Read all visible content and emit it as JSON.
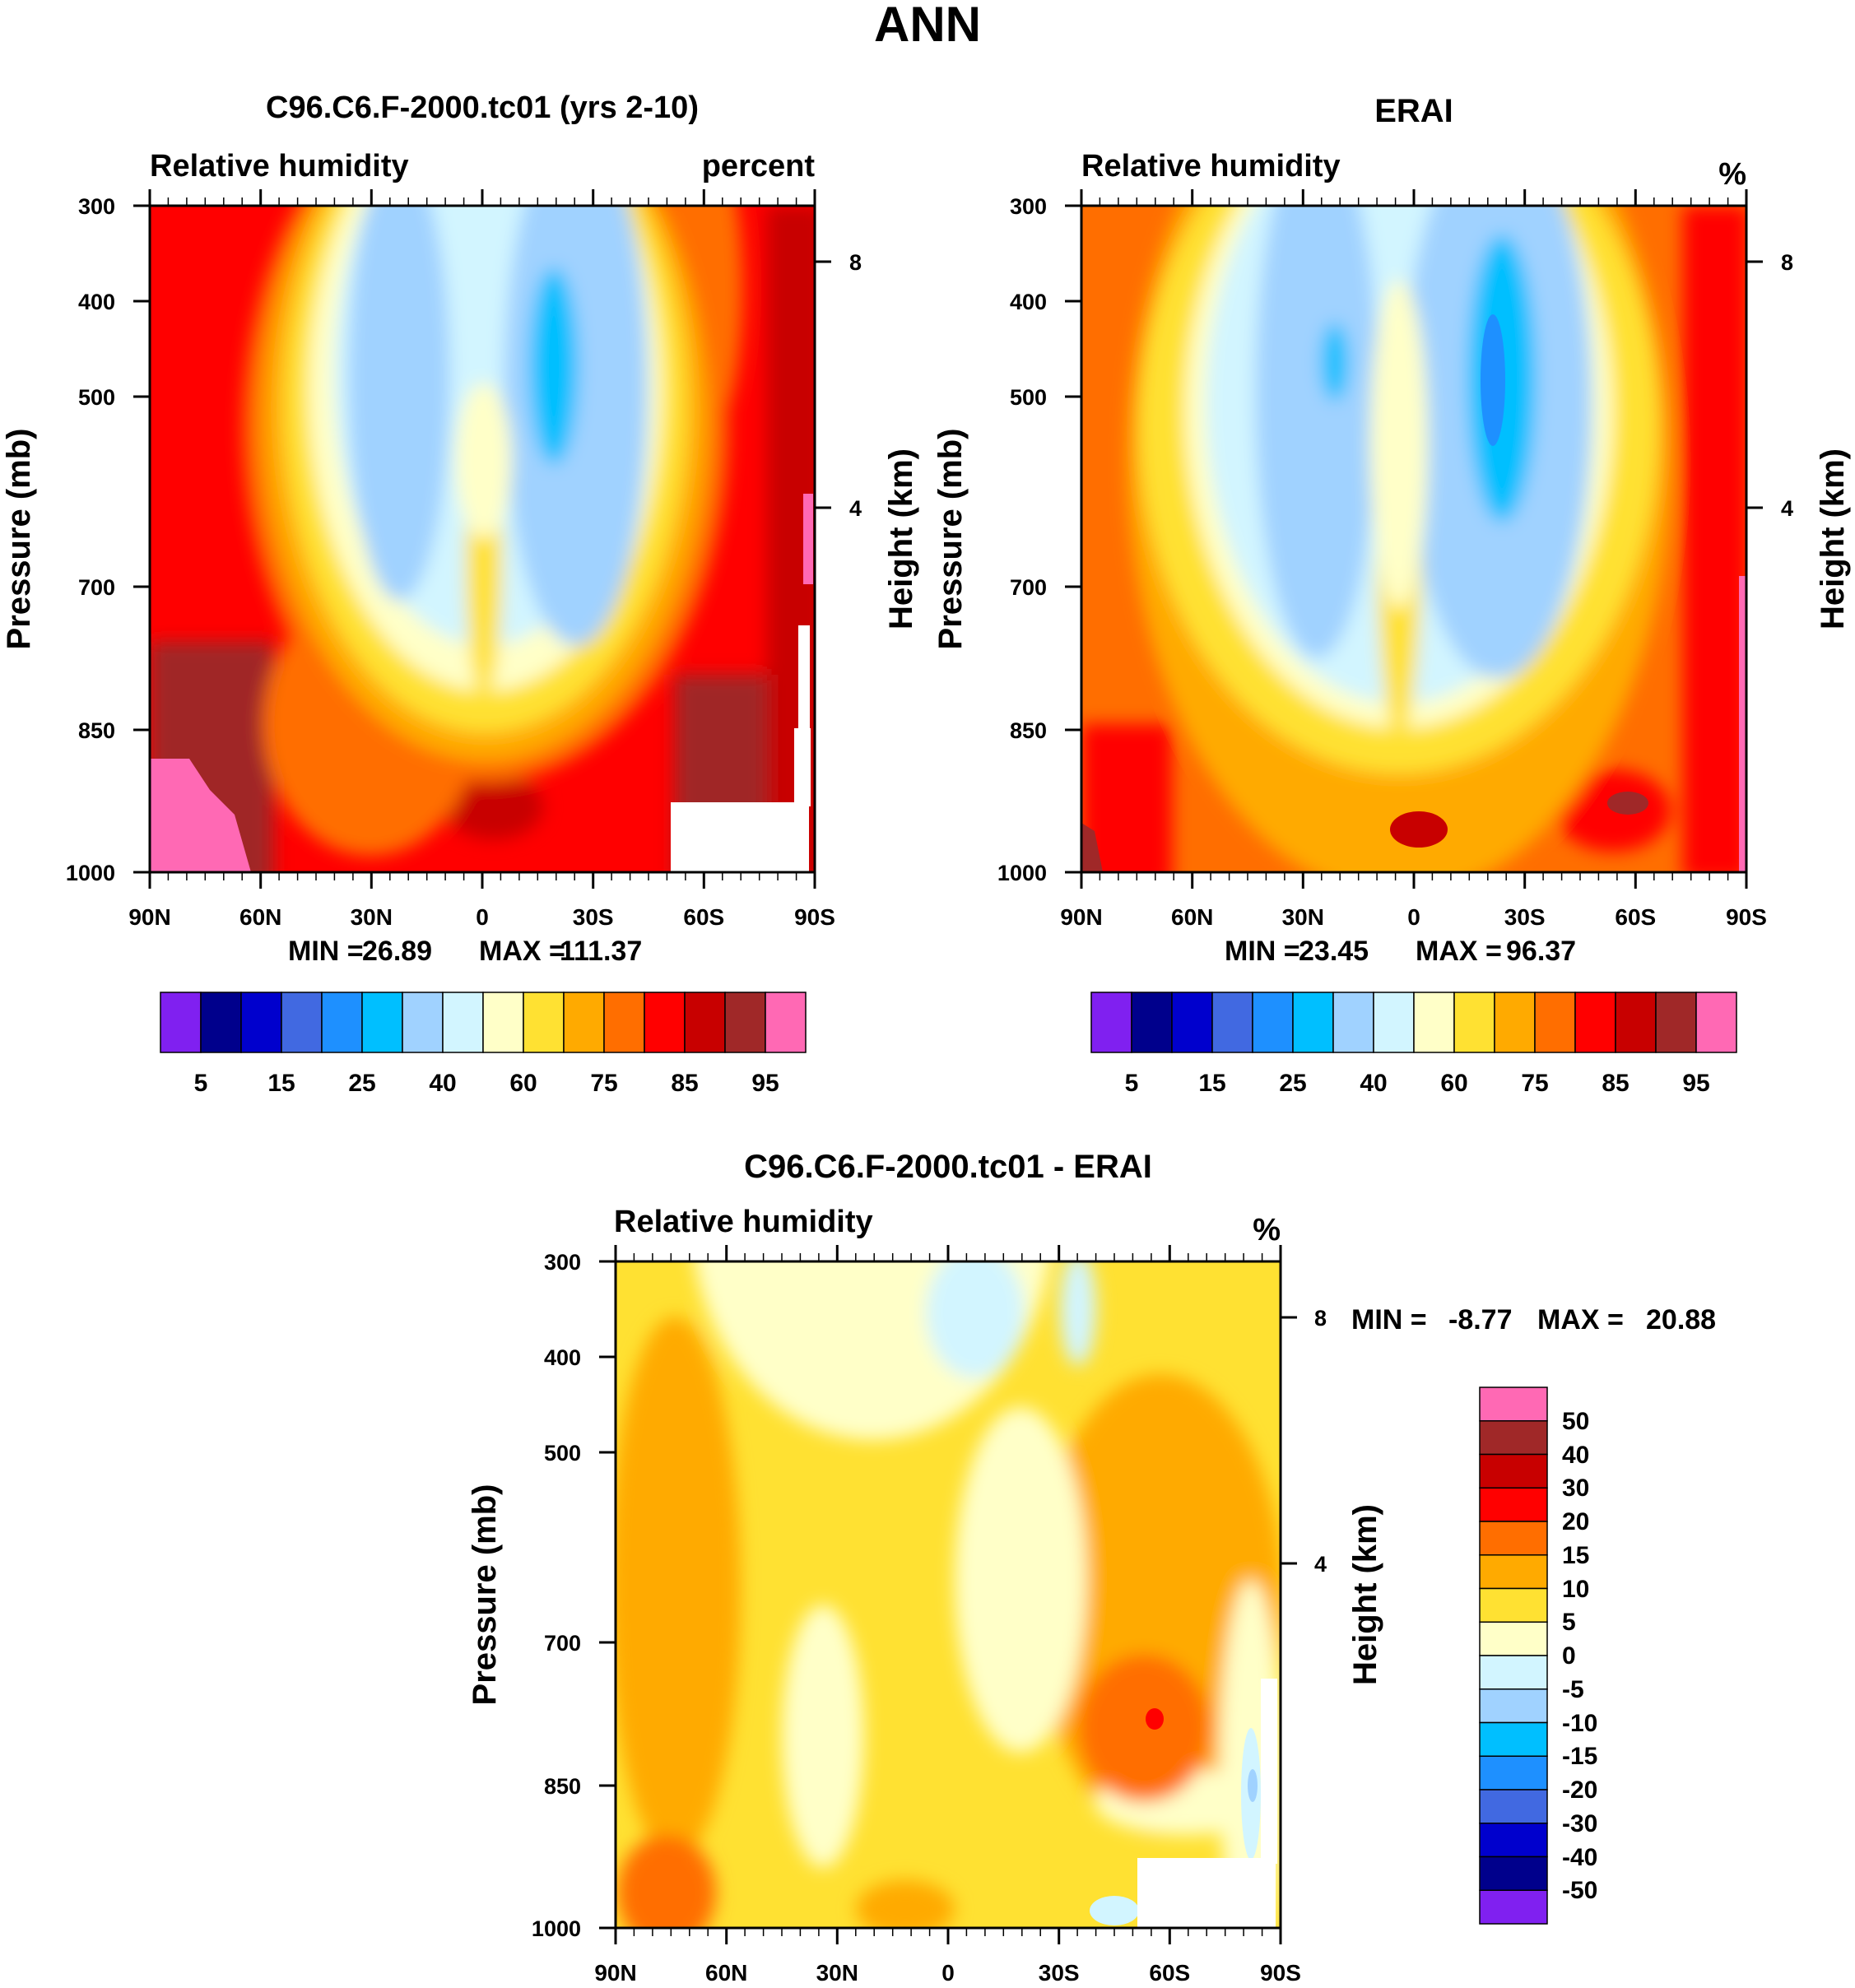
{
  "figure": {
    "title": "ANN"
  },
  "chart_data": [
    {
      "type": "heatmap",
      "panel": "model",
      "title": "C96.C6.F-2000.tc01 (yrs 2-10)",
      "variable": "Relative humidity",
      "units": "percent",
      "ylabel": "Pressure (mb)",
      "y2label": "Height (km)",
      "xticks": [
        "90N",
        "60N",
        "30N",
        "0",
        "30S",
        "60S",
        "90S"
      ],
      "yticks": [
        "300",
        "400",
        "500",
        "700",
        "850",
        "1000"
      ],
      "height_ticks": [
        "8",
        "4"
      ],
      "min_label": "MIN =",
      "min_value": "26.89",
      "max_label": "MAX =",
      "max_value": "111.37",
      "colorbar_labels": [
        "5",
        "15",
        "25",
        "40",
        "60",
        "75",
        "85",
        "95"
      ],
      "colors": [
        "#8020f0",
        "#00008c",
        "#0000cd",
        "#4169e1",
        "#1e90ff",
        "#00bfff",
        "#a0d2ff",
        "#d2f5ff",
        "#ffffc8",
        "#ffe132",
        "#ffaa00",
        "#ff6e00",
        "#ff0000",
        "#c80000",
        "#a02828",
        "#ff69b4"
      ]
    },
    {
      "type": "heatmap",
      "panel": "obs",
      "title": "ERAI",
      "variable": "Relative humidity",
      "units": "%",
      "ylabel": "Pressure (mb)",
      "y2label": "Height (km)",
      "xticks": [
        "90N",
        "60N",
        "30N",
        "0",
        "30S",
        "60S",
        "90S"
      ],
      "yticks": [
        "300",
        "400",
        "500",
        "700",
        "850",
        "1000"
      ],
      "height_ticks": [
        "8",
        "4"
      ],
      "min_label": "MIN =",
      "min_value": "23.45",
      "max_label": "MAX =",
      "max_value": "96.37",
      "colorbar_labels": [
        "5",
        "15",
        "25",
        "40",
        "60",
        "75",
        "85",
        "95"
      ],
      "colors": [
        "#8020f0",
        "#00008c",
        "#0000cd",
        "#4169e1",
        "#1e90ff",
        "#00bfff",
        "#a0d2ff",
        "#d2f5ff",
        "#ffffc8",
        "#ffe132",
        "#ffaa00",
        "#ff6e00",
        "#ff0000",
        "#c80000",
        "#a02828",
        "#ff69b4"
      ]
    },
    {
      "type": "heatmap",
      "panel": "diff",
      "title": "C96.C6.F-2000.tc01 - ERAI",
      "variable": "Relative humidity",
      "units": "%",
      "ylabel": "Pressure (mb)",
      "y2label": "Height (km)",
      "xticks": [
        "90N",
        "60N",
        "30N",
        "0",
        "30S",
        "60S",
        "90S"
      ],
      "yticks": [
        "300",
        "400",
        "500",
        "700",
        "850",
        "1000"
      ],
      "height_ticks": [
        "8",
        "4"
      ],
      "min_label": "MIN =",
      "min_value": "-8.77",
      "max_label": "MAX =",
      "max_value": "20.88",
      "colorbar_labels": [
        "50",
        "40",
        "30",
        "20",
        "15",
        "10",
        "5",
        "0",
        "-5",
        "-10",
        "-15",
        "-20",
        "-30",
        "-40",
        "-50"
      ],
      "colors": [
        "#ff69b4",
        "#a02828",
        "#c80000",
        "#ff0000",
        "#ff6e00",
        "#ffaa00",
        "#ffe132",
        "#ffffc8",
        "#d2f5ff",
        "#a0d2ff",
        "#00bfff",
        "#1e90ff",
        "#4169e1",
        "#0000cd",
        "#00008c",
        "#8020f0"
      ]
    }
  ]
}
